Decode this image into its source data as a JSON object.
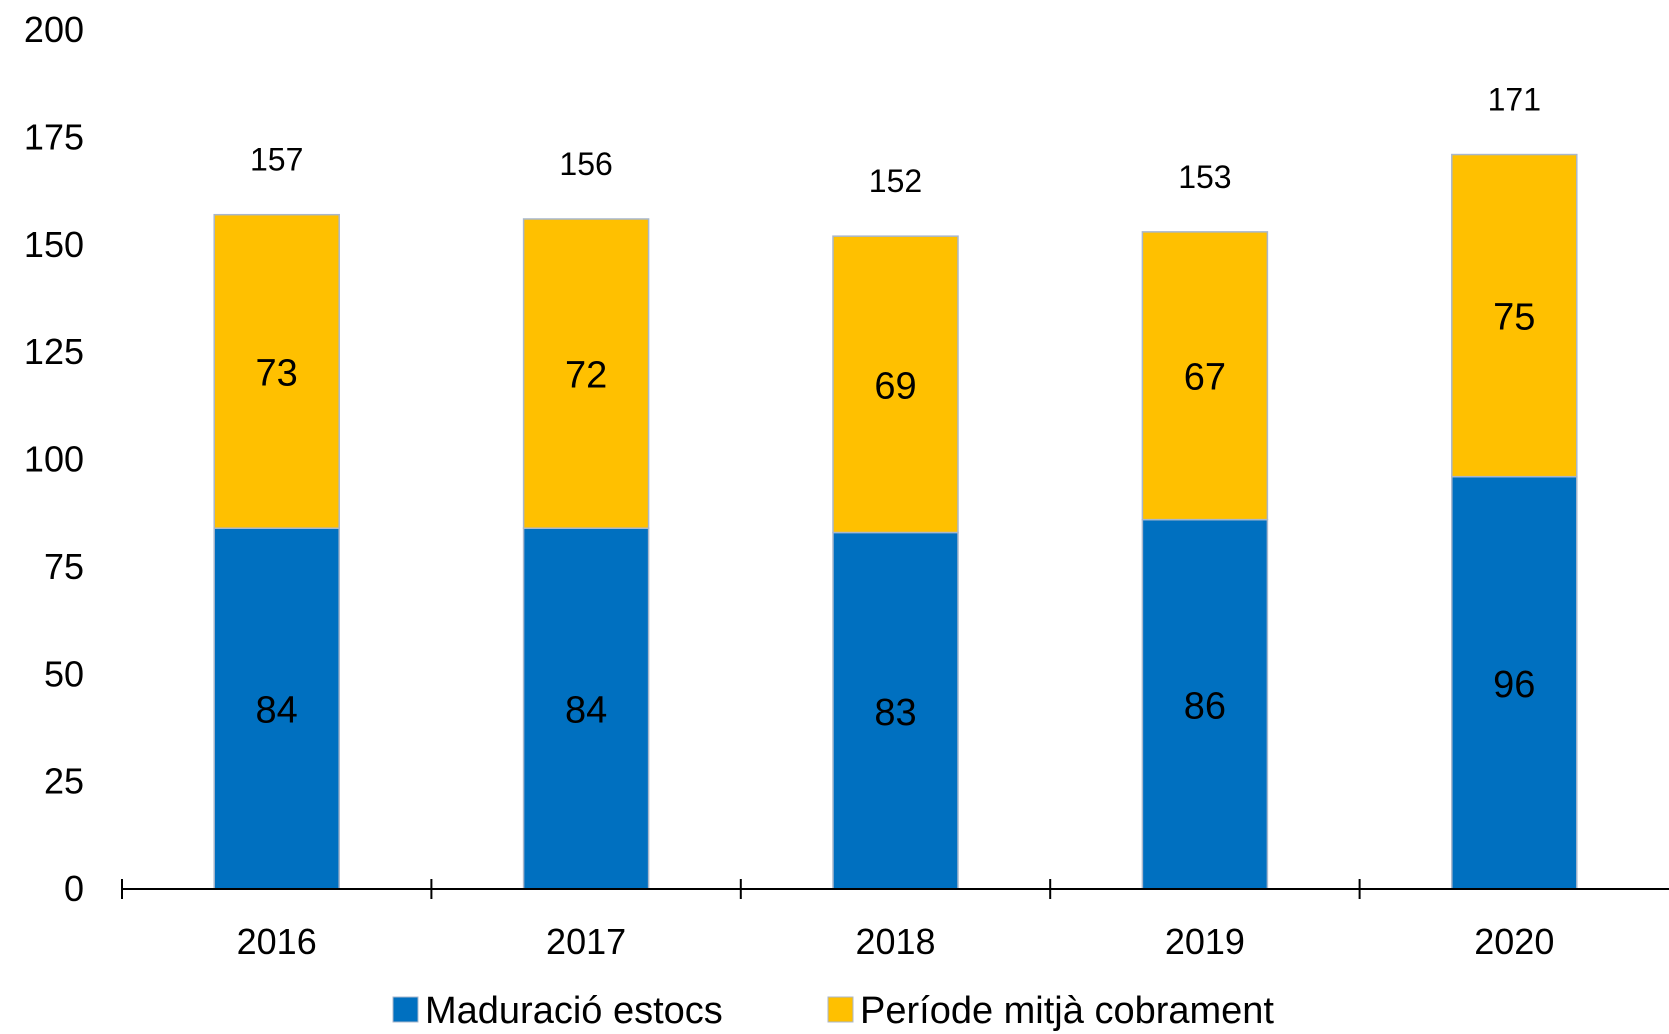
{
  "chart_data": {
    "type": "bar",
    "stacked": true,
    "categories": [
      "2016",
      "2017",
      "2018",
      "2019",
      "2020"
    ],
    "series": [
      {
        "name": "Maduració estocs",
        "values": [
          84,
          84,
          83,
          86,
          96
        ],
        "color": "#0070C0"
      },
      {
        "name": "Període mitjà cobrament",
        "values": [
          73,
          72,
          69,
          67,
          75
        ],
        "color": "#FFC000"
      }
    ],
    "totals": [
      157,
      156,
      152,
      153,
      171
    ],
    "ylim": [
      0,
      200
    ],
    "yticks": [
      0,
      25,
      50,
      75,
      100,
      125,
      150,
      175,
      200
    ],
    "grid": false,
    "legend_position": "bottom",
    "title": "",
    "xlabel": "",
    "ylabel": ""
  }
}
